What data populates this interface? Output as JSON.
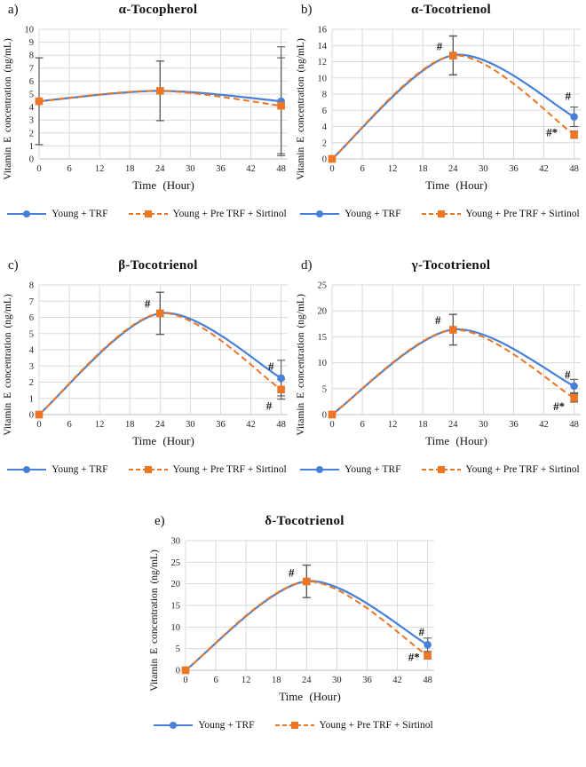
{
  "figure": {
    "background": "#ffffff",
    "legend_labels": [
      "Young + TRF",
      "Young + Pre TRF + Sirtinol"
    ],
    "colors": {
      "series1": "#4880d8",
      "series2": "#ed7524",
      "grid": "#d9d9d9",
      "axis": "#bfbfbf",
      "error_bar": "#595959",
      "text": "#262626"
    }
  },
  "chart_data": [
    {
      "type": "line",
      "panel": "a)",
      "title": "α-Tocopherol",
      "xlabel": "Time (Hour)",
      "ylabel": "Vitamin E concentration (ng/mL)",
      "x": [
        0,
        24,
        48
      ],
      "xticks": [
        0,
        6,
        12,
        18,
        24,
        30,
        36,
        42,
        48
      ],
      "xlim": [
        0,
        49.3
      ],
      "ylim": [
        0,
        10
      ],
      "ytick_step": 1,
      "grid": true,
      "legend_position": "bottom",
      "series": [
        {
          "name": "Young + TRF",
          "marker": "circle",
          "line": "solid",
          "values": [
            4.45,
            5.25,
            4.45
          ],
          "err": [
            3.35,
            2.3,
            4.2
          ]
        },
        {
          "name": "Young + Pre TRF + Sirtinol",
          "marker": "square",
          "line": "dashed",
          "values": [
            4.45,
            5.25,
            4.1
          ],
          "err": [
            3.35,
            2.3,
            3.7
          ]
        }
      ],
      "annotations": []
    },
    {
      "type": "line",
      "panel": "b)",
      "title": "α-Tocotrienol",
      "xlabel": "Time (Hour)",
      "ylabel": "Vitamin E concentration (ng/mL)",
      "x": [
        0,
        24,
        48
      ],
      "xticks": [
        0,
        6,
        12,
        18,
        24,
        30,
        36,
        42,
        48
      ],
      "xlim": [
        0,
        49.3
      ],
      "ylim": [
        0,
        16
      ],
      "ytick_step": 2,
      "grid": true,
      "legend_position": "bottom",
      "series": [
        {
          "name": "Young + TRF",
          "marker": "circle",
          "line": "solid",
          "values": [
            0,
            12.8,
            5.2
          ],
          "err": [
            null,
            2.4,
            1.2
          ]
        },
        {
          "name": "Young + Pre TRF + Sirtinol",
          "marker": "square",
          "line": "dashed",
          "values": [
            0,
            12.75,
            3.0
          ],
          "err": [
            null,
            2.4,
            0.45
          ]
        }
      ],
      "annotations": [
        {
          "text": "#",
          "x": 21.3,
          "y": 13.4
        },
        {
          "text": "#",
          "x": 46.8,
          "y": 7.3
        },
        {
          "text": "#*",
          "x": 43.6,
          "y": 2.8
        }
      ]
    },
    {
      "type": "line",
      "panel": "c)",
      "title": "β-Tocotrienol",
      "xlabel": "Time (Hour)",
      "ylabel": "Vitamin E concentration (ng/mL)",
      "x": [
        0,
        24,
        48
      ],
      "xticks": [
        0,
        6,
        12,
        18,
        24,
        30,
        36,
        42,
        48
      ],
      "xlim": [
        0,
        49.3
      ],
      "ylim": [
        0,
        8
      ],
      "ytick_step": 1,
      "grid": true,
      "legend_position": "bottom",
      "series": [
        {
          "name": "Young + TRF",
          "marker": "circle",
          "line": "solid",
          "values": [
            0,
            6.25,
            2.25
          ],
          "err": [
            null,
            1.3,
            1.1
          ]
        },
        {
          "name": "Young + Pre TRF + Sirtinol",
          "marker": "square",
          "line": "dashed",
          "values": [
            0,
            6.25,
            1.55
          ],
          "err": [
            null,
            1.3,
            0.6
          ]
        }
      ],
      "annotations": [
        {
          "text": "#",
          "x": 21.5,
          "y": 6.6
        },
        {
          "text": "#",
          "x": 46.0,
          "y": 2.75
        },
        {
          "text": "#",
          "x": 45.6,
          "y": 0.3
        }
      ]
    },
    {
      "type": "line",
      "panel": "d)",
      "title": "γ-Tocotrienol",
      "xlabel": "Time (Hour)",
      "ylabel": "Vitamin E concentration (ng/mL)",
      "x": [
        0,
        24,
        48
      ],
      "xticks": [
        0,
        6,
        12,
        18,
        24,
        30,
        36,
        42,
        48
      ],
      "xlim": [
        0,
        49.3
      ],
      "ylim": [
        0,
        25
      ],
      "ytick_step": 5,
      "grid": true,
      "legend_position": "bottom",
      "series": [
        {
          "name": "Young + TRF",
          "marker": "circle",
          "line": "solid",
          "values": [
            0,
            16.4,
            5.5
          ],
          "err": [
            null,
            2.95,
            1.3
          ]
        },
        {
          "name": "Young + Pre TRF + Sirtinol",
          "marker": "square",
          "line": "dashed",
          "values": [
            0,
            16.35,
            3.2
          ],
          "err": [
            null,
            2.95,
            0.8
          ]
        }
      ],
      "annotations": [
        {
          "text": "#",
          "x": 21.0,
          "y": 17.5
        },
        {
          "text": "#",
          "x": 46.7,
          "y": 6.9
        },
        {
          "text": "#*",
          "x": 45.0,
          "y": 0.85
        }
      ]
    },
    {
      "type": "line",
      "panel": "e)",
      "title": "δ-Tocotrienol",
      "xlabel": "Time (Hour)",
      "ylabel": "Vitamin E concentration (ng/mL)",
      "x": [
        0,
        24,
        48
      ],
      "xticks": [
        0,
        6,
        12,
        18,
        24,
        30,
        36,
        42,
        48
      ],
      "xlim": [
        0,
        49.3
      ],
      "ylim": [
        0,
        30
      ],
      "ytick_step": 5,
      "grid": true,
      "legend_position": "bottom",
      "series": [
        {
          "name": "Young + TRF",
          "marker": "circle",
          "line": "solid",
          "values": [
            0,
            20.6,
            5.9
          ],
          "err": [
            null,
            3.75,
            1.55
          ]
        },
        {
          "name": "Young + Pre TRF + Sirtinol",
          "marker": "square",
          "line": "dashed",
          "values": [
            0,
            20.55,
            3.4
          ],
          "err": [
            null,
            3.75,
            0.8
          ]
        }
      ],
      "annotations": [
        {
          "text": "#",
          "x": 21.0,
          "y": 21.7
        },
        {
          "text": "#",
          "x": 46.8,
          "y": 8.0
        },
        {
          "text": "#*",
          "x": 45.3,
          "y": 2.2
        }
      ]
    }
  ]
}
